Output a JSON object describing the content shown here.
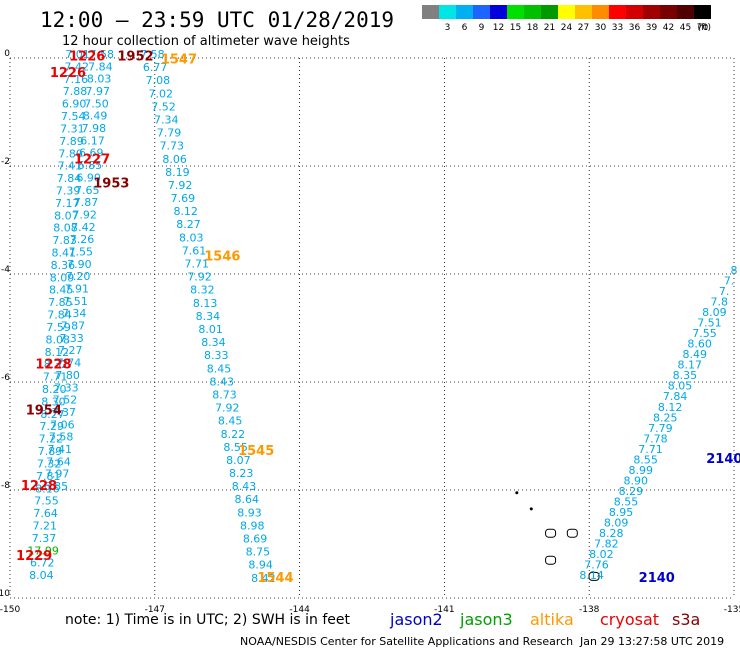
{
  "header": {
    "title": "12:00 – 23:59 UTC 01/28/2019",
    "subtitle": "12 hour collection of altimeter wave heights"
  },
  "legend": {
    "bins": [
      {
        "label": "",
        "color": "#808080"
      },
      {
        "label": "3",
        "color": "#00e5e5"
      },
      {
        "label": "6",
        "color": "#00b0f0"
      },
      {
        "label": "9",
        "color": "#1e64ff"
      },
      {
        "label": "12",
        "color": "#0000dc"
      },
      {
        "label": "15",
        "color": "#00e000"
      },
      {
        "label": "18",
        "color": "#00c000"
      },
      {
        "label": "21",
        "color": "#009a00"
      },
      {
        "label": "24",
        "color": "#ffff00"
      },
      {
        "label": "27",
        "color": "#ffc000"
      },
      {
        "label": "30",
        "color": "#ff8c00"
      },
      {
        "label": "33",
        "color": "#ff0000"
      },
      {
        "label": "36",
        "color": "#d20000"
      },
      {
        "label": "39",
        "color": "#a00000"
      },
      {
        "label": "42",
        "color": "#780000"
      },
      {
        "label": "45",
        "color": "#500000"
      },
      {
        "label": "70",
        "color": "#000000"
      }
    ],
    "unit": "(ft)"
  },
  "footer": {
    "note": "note: 1) Time is in UTC; 2) SWH is in feet",
    "satellites": [
      {
        "name": "jason2",
        "color": "#0000cc"
      },
      {
        "name": "jason3",
        "color": "#00a000"
      },
      {
        "name": "altika",
        "color": "#ff9900"
      },
      {
        "name": "cryosat",
        "color": "#ee0000"
      },
      {
        "name": "s3a",
        "color": "#880000"
      }
    ],
    "credit": "NOAA/NESDIS Center for Satellite Applications and Research",
    "timestamp": "Jan 29 13:27:58 UTC 2019"
  },
  "chart_data": {
    "type": "scatter",
    "title": "12 hour collection of altimeter wave heights",
    "xlim": [
      -150,
      -135
    ],
    "ylim": [
      -10,
      0
    ],
    "x_ticks": [
      "-150",
      "-147",
      "-144",
      "-141",
      "-138",
      "-135"
    ],
    "y_ticks": [
      "0",
      "-2",
      "-4",
      "-6",
      "-8",
      "-10"
    ],
    "grid": true,
    "colors": {
      "swh": "#00a8e8",
      "swh_green": "#00b000",
      "jason2": "#0000cc",
      "altika": "#ff9900",
      "cryosat": "#ee0000",
      "s3a": "#880000"
    },
    "tracks": [
      {
        "name": "track-a",
        "color": "#00a8e8",
        "start": [
          -148.6,
          0.0
        ],
        "end": [
          -149.35,
          -9.65
        ],
        "values": [
          "7.01",
          "7.42",
          "7.16",
          "7.88",
          "6.90",
          "7.54",
          "7.31",
          "7.89",
          "7.80",
          "7.41",
          "7.84",
          "7.39",
          "7.17",
          "8.07",
          "8.08",
          "7.83",
          "8.41",
          "8.36",
          "8.09",
          "8.45",
          "7.85",
          "7.84",
          "7.59",
          "8.08",
          "8.12",
          "8.32",
          "7.71",
          "8.20",
          "8.30",
          "8.27",
          "7.29",
          "7.22",
          "7.89",
          "7.32",
          "7.81",
          "8.16",
          "7.55",
          "7.64",
          "7.21",
          "7.37",
          "17.99",
          "6.72",
          "8.04"
        ],
        "highlight": {
          "17.99": "#00b000"
        }
      },
      {
        "name": "track-b",
        "color": "#00a8e8",
        "start": [
          -148.1,
          0.0
        ],
        "end": [
          -149.05,
          -8.0
        ],
        "values": [
          "7.58",
          "7.84",
          "8.03",
          "7.97",
          "7.50",
          "8.49",
          "7.98",
          "6.17",
          "6.69",
          "6.85",
          "6.90",
          "7.65",
          "7.87",
          "7.92",
          "7.42",
          "7.26",
          "7.55",
          "7.90",
          "7.20",
          "7.91",
          "7.51",
          "7.34",
          "7.87",
          "7.33",
          "7.27",
          "7.74",
          "7.80",
          "7.33",
          "7.52",
          "7.37",
          "7.06",
          "7.58",
          "7.41",
          "7.64",
          "7.97",
          "6.85"
        ],
        "highlight": {}
      },
      {
        "name": "track-c",
        "color": "#00a8e8",
        "start": [
          -147.05,
          0.0
        ],
        "end": [
          -144.75,
          -9.7
        ],
        "values": [
          "7.58",
          "6.77",
          "7.08",
          "7.02",
          "7.52",
          "7.34",
          "7.79",
          "7.73",
          "8.06",
          "8.19",
          "7.92",
          "7.69",
          "8.12",
          "8.27",
          "8.03",
          "7.61",
          "7.71",
          "7.92",
          "8.32",
          "8.13",
          "8.34",
          "8.01",
          "8.34",
          "8.33",
          "8.45",
          "8.43",
          "8.73",
          "7.92",
          "8.45",
          "8.22",
          "8.55",
          "8.07",
          "8.23",
          "8.43",
          "8.64",
          "8.93",
          "8.98",
          "8.69",
          "8.75",
          "8.94",
          "8.42"
        ],
        "highlight": {}
      },
      {
        "name": "track-d",
        "color": "#00a8e8",
        "start": [
          -135.0,
          -4.0
        ],
        "end": [
          -137.95,
          -9.65
        ],
        "values": [
          "8",
          "7.",
          "7.",
          "7.8",
          "8.09",
          "7.51",
          "7.55",
          "8.60",
          "8.49",
          "8.17",
          "8.35",
          "8.05",
          "7.84",
          "8.12",
          "8.25",
          "7.79",
          "7.78",
          "7.71",
          "8.55",
          "8.99",
          "8.90",
          "8.29",
          "8.55",
          "8.95",
          "8.09",
          "8.28",
          "7.82",
          "8.02",
          "7.76",
          "8.14"
        ],
        "highlight": {}
      }
    ],
    "time_labels": [
      {
        "text": "1226",
        "sat": "cryosat",
        "x": -148.4,
        "y": -0.05
      },
      {
        "text": "1952",
        "sat": "s3a",
        "x": -147.4,
        "y": -0.05
      },
      {
        "text": "1547",
        "sat": "altika",
        "x": -146.5,
        "y": -0.1
      },
      {
        "text": "1226",
        "sat": "cryosat",
        "x": -148.8,
        "y": -0.35
      },
      {
        "text": "1227",
        "sat": "cryosat",
        "x": -148.3,
        "y": -1.95
      },
      {
        "text": "1953",
        "sat": "s3a",
        "x": -147.9,
        "y": -2.4
      },
      {
        "text": "1546",
        "sat": "altika",
        "x": -145.6,
        "y": -3.75
      },
      {
        "text": "1228",
        "sat": "cryosat",
        "x": -149.1,
        "y": -5.75
      },
      {
        "text": "1954",
        "sat": "s3a",
        "x": -149.3,
        "y": -6.6
      },
      {
        "text": "1545",
        "sat": "altika",
        "x": -144.9,
        "y": -7.35
      },
      {
        "text": "1228",
        "sat": "cryosat",
        "x": -149.4,
        "y": -8.0
      },
      {
        "text": "1229",
        "sat": "cryosat",
        "x": -149.5,
        "y": -9.3
      },
      {
        "text": "1544",
        "sat": "altika",
        "x": -144.5,
        "y": -9.7
      },
      {
        "text": "2140",
        "sat": "jason2",
        "x": -135.2,
        "y": -7.5
      },
      {
        "text": "2140",
        "sat": "jason2",
        "x": -136.6,
        "y": -9.7
      }
    ],
    "islands": [
      {
        "name": "island-small-1",
        "x": -139.5,
        "y": -8.05
      },
      {
        "name": "island-small-2",
        "x": -139.2,
        "y": -8.35
      },
      {
        "name": "island-1",
        "x": -138.8,
        "y": -8.8
      },
      {
        "name": "island-2",
        "x": -138.35,
        "y": -8.8
      },
      {
        "name": "island-3",
        "x": -138.8,
        "y": -9.3
      },
      {
        "name": "island-4",
        "x": -137.9,
        "y": -9.6
      }
    ]
  }
}
